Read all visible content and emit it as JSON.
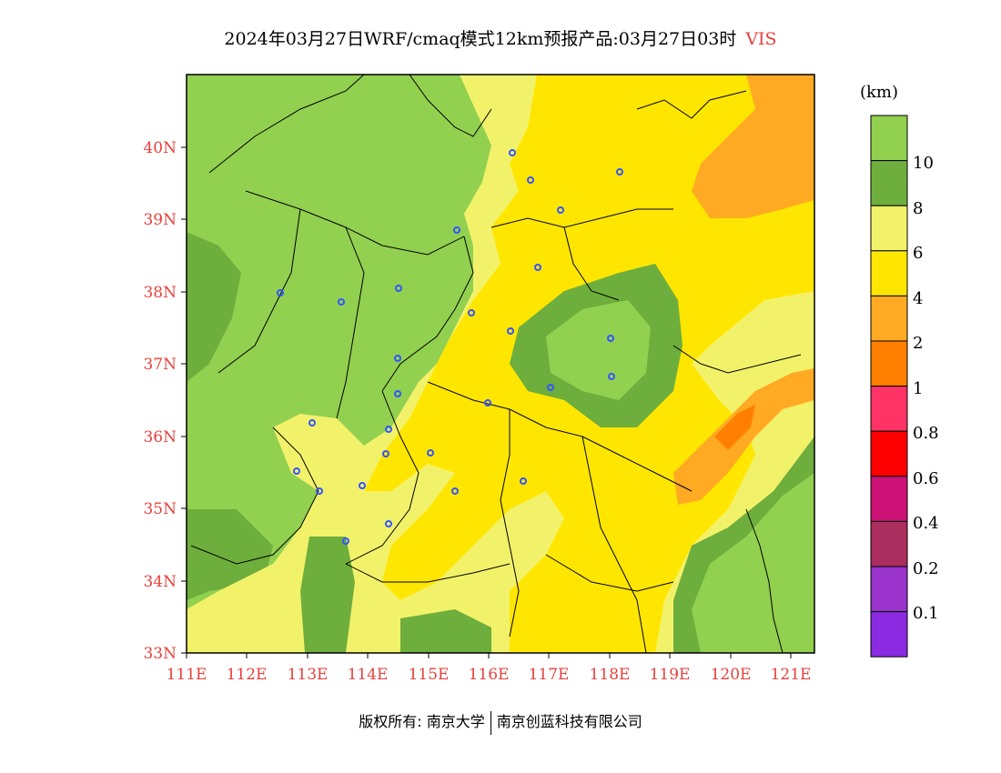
{
  "title": {
    "main": "2024年03月27日WRF/cmaq模式12km预报产品:03月27日03时",
    "variable": "VIS"
  },
  "map": {
    "lon_labels": [
      "111E",
      "112E",
      "113E",
      "114E",
      "115E",
      "116E",
      "117E",
      "118E",
      "119E",
      "120E",
      "121E"
    ],
    "lat_labels": [
      "40N",
      "39N",
      "38N",
      "37N",
      "36N",
      "35N",
      "34N",
      "33N"
    ],
    "region_colors": {
      "gt10": "#92d050",
      "8_10": "#6eae3c",
      "6_8": "#f2f26a",
      "4_6": "#ffe600",
      "2_4": "#ffaa22",
      "1_2": "#ff8000"
    },
    "station_marker_color": "#3355ff"
  },
  "colorbar": {
    "unit": "(km)",
    "labels": [
      "10",
      "8",
      "6",
      "4",
      "2",
      "1",
      "0.8",
      "0.6",
      "0.4",
      "0.2",
      "0.1"
    ],
    "colors": [
      "#92d050",
      "#6eae3c",
      "#f2f26a",
      "#ffe600",
      "#ffaa22",
      "#ff8000",
      "#ff3366",
      "#ff0000",
      "#cc1177",
      "#aa2e5e",
      "#9933cc",
      "#8a2be2"
    ]
  },
  "footer": {
    "left": "版权所有: 南京大学",
    "right": "南京创蓝科技有限公司"
  }
}
